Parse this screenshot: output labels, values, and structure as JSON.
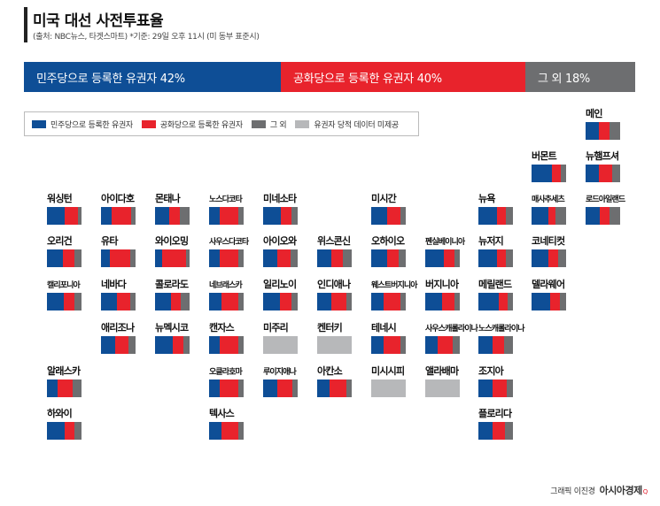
{
  "header": {
    "title": "미국 대선 사전투표율",
    "subtitle": "(출처: NBC뉴스, 타겟스마트) *기준: 29일 오후 11시 (미 동부 표준시)"
  },
  "colors": {
    "dem": "#0e4e96",
    "rep": "#e8232c",
    "other": "#6d6e70",
    "nodata": "#b7b8ba"
  },
  "chart_data": {
    "type": "bar",
    "title": "미국 대선 사전투표율",
    "national": [
      {
        "name": "민주당으로 등록한 유권자",
        "label": "민주당으로 등록한 유권자  42%",
        "value": 42,
        "color": "dem"
      },
      {
        "name": "공화당으로 등록한 유권자",
        "label": "공화당으로 등록한 유권자  40%",
        "value": 40,
        "color": "rep"
      },
      {
        "name": "그 외",
        "label": "그 외  18%",
        "value": 18,
        "color": "other"
      }
    ],
    "legend": [
      {
        "label": "민주당으로 등록한 유권자",
        "color": "dem"
      },
      {
        "label": "공화당으로 등록한 유권자",
        "color": "rep"
      },
      {
        "label": "그 외",
        "color": "other"
      },
      {
        "label": "유권자 당적 데이터 미제공",
        "color": "nodata"
      }
    ],
    "states": [
      {
        "name": "메인",
        "col": 10,
        "row": 0,
        "dem": 38,
        "rep": 30,
        "other": 32
      },
      {
        "name": "버몬트",
        "col": 9,
        "row": 1,
        "dem": 60,
        "rep": 25,
        "other": 15
      },
      {
        "name": "뉴햄프셔",
        "col": 10,
        "row": 1,
        "dem": 38,
        "rep": 40,
        "other": 22
      },
      {
        "name": "워싱턴",
        "col": 0,
        "row": 2,
        "nodata": false,
        "dem": 50,
        "rep": 40,
        "other": 10
      },
      {
        "name": "아이다호",
        "col": 1,
        "row": 2,
        "dem": 30,
        "rep": 58,
        "other": 12
      },
      {
        "name": "몬태나",
        "col": 2,
        "row": 2,
        "dem": 42,
        "rep": 30,
        "other": 28
      },
      {
        "name": "노스다코타",
        "col": 3,
        "row": 2,
        "dem": 30,
        "rep": 55,
        "other": 15
      },
      {
        "name": "미네소타",
        "col": 4,
        "row": 2,
        "dem": 52,
        "rep": 30,
        "other": 18
      },
      {
        "name": "미시간",
        "col": 6,
        "row": 2,
        "dem": 45,
        "rep": 40,
        "other": 15
      },
      {
        "name": "뉴욕",
        "col": 8,
        "row": 2,
        "dem": 55,
        "rep": 25,
        "other": 20
      },
      {
        "name": "매사추세츠",
        "col": 9,
        "row": 2,
        "dem": 48,
        "rep": 20,
        "other": 32
      },
      {
        "name": "로드아일랜드",
        "col": 10,
        "row": 2,
        "dem": 40,
        "rep": 30,
        "other": 30
      },
      {
        "name": "오리건",
        "col": 0,
        "row": 3,
        "dem": 45,
        "rep": 35,
        "other": 20
      },
      {
        "name": "유타",
        "col": 1,
        "row": 3,
        "dem": 25,
        "rep": 60,
        "other": 15
      },
      {
        "name": "와이오밍",
        "col": 2,
        "row": 3,
        "dem": 20,
        "rep": 70,
        "other": 10
      },
      {
        "name": "사우스다코타",
        "col": 3,
        "row": 3,
        "dem": 30,
        "rep": 55,
        "other": 15
      },
      {
        "name": "아이오와",
        "col": 4,
        "row": 3,
        "dem": 42,
        "rep": 38,
        "other": 20
      },
      {
        "name": "위스콘신",
        "col": 5,
        "row": 3,
        "dem": 40,
        "rep": 35,
        "other": 25
      },
      {
        "name": "오하이오",
        "col": 6,
        "row": 3,
        "dem": 45,
        "rep": 35,
        "other": 20
      },
      {
        "name": "펜실베이니아",
        "col": 7,
        "row": 3,
        "dem": 55,
        "rep": 30,
        "other": 15
      },
      {
        "name": "뉴저지",
        "col": 8,
        "row": 3,
        "dem": 55,
        "rep": 25,
        "other": 20
      },
      {
        "name": "코네티컷",
        "col": 9,
        "row": 3,
        "dem": 48,
        "rep": 30,
        "other": 22
      },
      {
        "name": "캘리포니아",
        "col": 0,
        "row": 4,
        "dem": 48,
        "rep": 32,
        "other": 20
      },
      {
        "name": "네바다",
        "col": 1,
        "row": 4,
        "dem": 45,
        "rep": 40,
        "other": 15
      },
      {
        "name": "콜로라도",
        "col": 2,
        "row": 4,
        "dem": 45,
        "rep": 30,
        "other": 25
      },
      {
        "name": "네브래스카",
        "col": 3,
        "row": 4,
        "dem": 35,
        "rep": 50,
        "other": 15
      },
      {
        "name": "일리노이",
        "col": 4,
        "row": 4,
        "dem": 48,
        "rep": 35,
        "other": 17
      },
      {
        "name": "인디애나",
        "col": 5,
        "row": 4,
        "dem": 40,
        "rep": 45,
        "other": 15
      },
      {
        "name": "웨스트버지니아",
        "col": 6,
        "row": 4,
        "dem": 35,
        "rep": 50,
        "other": 15
      },
      {
        "name": "버지니아",
        "col": 7,
        "row": 4,
        "dem": 48,
        "rep": 37,
        "other": 15
      },
      {
        "name": "메릴랜드",
        "col": 8,
        "row": 4,
        "dem": 60,
        "rep": 25,
        "other": 15
      },
      {
        "name": "델라웨어",
        "col": 9,
        "row": 4,
        "dem": 55,
        "rep": 28,
        "other": 17
      },
      {
        "name": "애리조나",
        "col": 1,
        "row": 5,
        "dem": 40,
        "rep": 40,
        "other": 20
      },
      {
        "name": "뉴멕시코",
        "col": 2,
        "row": 5,
        "dem": 50,
        "rep": 32,
        "other": 18
      },
      {
        "name": "캔자스",
        "col": 3,
        "row": 5,
        "dem": 30,
        "rep": 55,
        "other": 15
      },
      {
        "name": "미주리",
        "col": 4,
        "row": 5,
        "nodata": true
      },
      {
        "name": "켄터키",
        "col": 5,
        "row": 5,
        "nodata": true
      },
      {
        "name": "테네시",
        "col": 6,
        "row": 5,
        "dem": 35,
        "rep": 50,
        "other": 15
      },
      {
        "name": "사우스캐롤라이나",
        "col": 7,
        "row": 5,
        "dem": 35,
        "rep": 45,
        "other": 20
      },
      {
        "name": "노스캐롤라이나",
        "col": 8,
        "row": 5,
        "dem": 40,
        "rep": 35,
        "other": 25
      },
      {
        "name": "알래스카",
        "col": 0,
        "row": 6,
        "dem": 30,
        "rep": 45,
        "other": 25
      },
      {
        "name": "오클라호마",
        "col": 3,
        "row": 6,
        "dem": 30,
        "rep": 55,
        "other": 15
      },
      {
        "name": "루이지애나",
        "col": 4,
        "row": 6,
        "dem": 40,
        "rep": 45,
        "other": 15
      },
      {
        "name": "아칸소",
        "col": 5,
        "row": 6,
        "dem": 35,
        "rep": 50,
        "other": 15
      },
      {
        "name": "미시시피",
        "col": 6,
        "row": 6,
        "nodata": true
      },
      {
        "name": "앨라배마",
        "col": 7,
        "row": 6,
        "nodata": true
      },
      {
        "name": "조지아",
        "col": 8,
        "row": 6,
        "dem": 40,
        "rep": 42,
        "other": 18
      },
      {
        "name": "하와이",
        "col": 0,
        "row": 7,
        "dem": 50,
        "rep": 30,
        "other": 20
      },
      {
        "name": "텍사스",
        "col": 3,
        "row": 7,
        "dem": 35,
        "rep": 50,
        "other": 15
      },
      {
        "name": "플로리다",
        "col": 8,
        "row": 7,
        "dem": 40,
        "rep": 37,
        "other": 23
      }
    ]
  },
  "credit": {
    "text": "그래픽 이진경",
    "logo": "아시아경제",
    "logo_mark": "Q"
  }
}
